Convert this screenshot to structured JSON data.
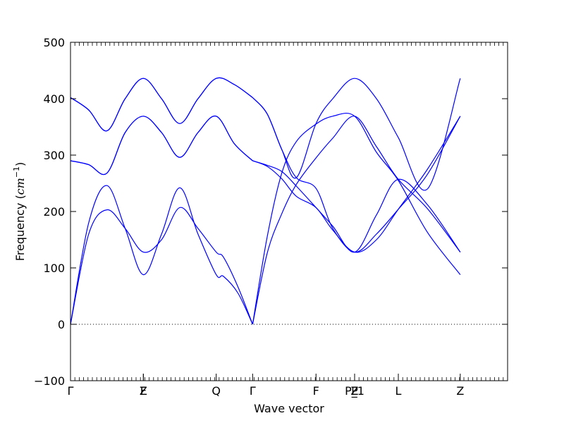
{
  "chart_data": {
    "type": "line",
    "title": "",
    "xlabel": "Wave vector",
    "ylabel_main": "Frequency (",
    "ylabel_unit": "cm",
    "ylabel_exp": "−1",
    "ylabel_close": ")",
    "ylim": [
      -100,
      500
    ],
    "yticks": [
      -100,
      0,
      100,
      200,
      300,
      400,
      500
    ],
    "xlim": [
      0,
      6
    ],
    "high_symmetry_points": [
      {
        "label": "Γ",
        "x": 0
      },
      {
        "label": "F",
        "x": 1
      },
      {
        "label": "Z",
        "x": 1
      },
      {
        "label": "Q",
        "x": 2
      },
      {
        "label": "Γ",
        "x": 2.5
      },
      {
        "label": "F",
        "x": 3.37
      },
      {
        "label": "P",
        "x": 3.9
      },
      {
        "label": "P_1",
        "x": 3.9
      },
      {
        "label": "Z",
        "x": 3.9
      },
      {
        "label": "L",
        "x": 4.5
      },
      {
        "label": "Z",
        "x": 5.35
      }
    ],
    "zero_line": {
      "y": 0,
      "style": "dotted"
    },
    "grid": false,
    "colors": {
      "bands": "#0000ff",
      "axes": "#000000",
      "zero_line": "#000000"
    },
    "series": [
      {
        "x": [
          0,
          0.25,
          0.5,
          0.75,
          1,
          1.25,
          1.5,
          1.75,
          2,
          2.1,
          2.3,
          2.5,
          2.7,
          2.9,
          3.1,
          3.37,
          3.6,
          3.9,
          4.2,
          4.5,
          4.9,
          5.35
        ],
        "values": [
          0,
          160,
          203,
          170,
          128,
          150,
          207,
          170,
          128,
          119,
          66,
          0,
          126,
          196,
          248,
          295,
          330,
          369,
          315,
          257,
          205,
          128
        ]
      },
      {
        "x": [
          0,
          0.25,
          0.5,
          0.75,
          1,
          1.25,
          1.5,
          1.75,
          2,
          2.1,
          2.3,
          2.5,
          2.7,
          2.9,
          3.1,
          3.37,
          3.6,
          3.9,
          4.2,
          4.5,
          4.9,
          5.35
        ],
        "values": [
          0,
          180,
          246,
          170,
          88,
          160,
          242,
          160,
          88,
          85,
          55,
          0,
          155,
          268,
          324,
          355,
          369,
          369,
          305,
          255,
          163,
          88
        ]
      },
      {
        "x": [
          0,
          0.25,
          0.5,
          0.75,
          1,
          1.25,
          1.5,
          1.75,
          2,
          2.25,
          2.5,
          2.7,
          2.9,
          3.1,
          3.37,
          3.6,
          3.9,
          4.2,
          4.5,
          4.9,
          5.35
        ],
        "values": [
          290,
          283,
          268,
          340,
          369,
          340,
          296,
          340,
          369,
          320,
          290,
          280,
          258,
          227,
          207,
          167,
          128,
          150,
          204,
          275,
          369
        ]
      },
      {
        "x": [
          0,
          0.25,
          0.5,
          0.75,
          1,
          1.25,
          1.5,
          1.75,
          2,
          2.25,
          2.5,
          2.7,
          2.9,
          3.1,
          3.37,
          3.6,
          3.9,
          4.2,
          4.5,
          4.9,
          5.35
        ],
        "values": [
          290,
          283,
          268,
          340,
          369,
          340,
          296,
          340,
          369,
          320,
          290,
          282,
          271,
          245,
          207,
          174,
          128,
          194,
          257,
          212,
          128
        ]
      },
      {
        "x": [
          0,
          0.25,
          0.5,
          0.75,
          1,
          1.25,
          1.5,
          1.75,
          2,
          2.25,
          2.5,
          2.7,
          2.9,
          3.1,
          3.37,
          3.6,
          3.9,
          4.2,
          4.5,
          4.9,
          5.35
        ],
        "values": [
          402,
          380,
          343,
          400,
          436,
          400,
          356,
          400,
          436,
          425,
          402,
          373,
          310,
          260,
          241,
          170,
          128,
          160,
          204,
          266,
          369
        ]
      },
      {
        "x": [
          0,
          0.25,
          0.5,
          0.75,
          1,
          1.25,
          1.5,
          1.75,
          2,
          2.25,
          2.5,
          2.7,
          2.9,
          3.1,
          3.37,
          3.6,
          3.9,
          4.2,
          4.5,
          4.9,
          5.35
        ],
        "values": [
          402,
          380,
          343,
          400,
          436,
          400,
          356,
          400,
          436,
          425,
          402,
          373,
          310,
          260,
          356,
          400,
          436,
          400,
          331,
          240,
          436
        ]
      }
    ]
  }
}
